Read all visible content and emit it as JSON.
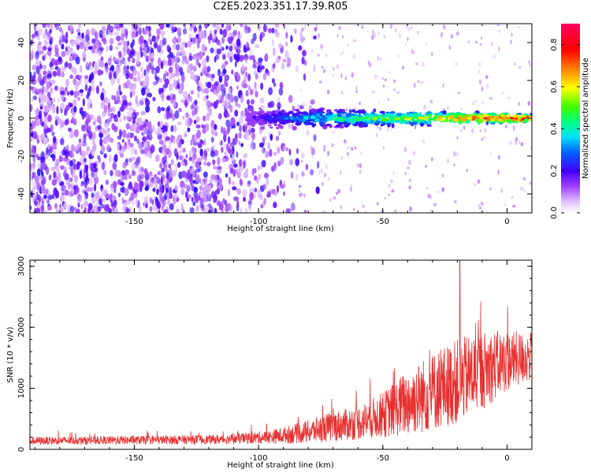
{
  "title": "C2E5.2023.351.17.39.R05",
  "chart_data": [
    {
      "type": "heatmap",
      "xlabel": "Height of straight line (km)",
      "ylabel": "Frequency (Hz)",
      "xlim": [
        -192,
        10
      ],
      "ylim": [
        -50,
        50
      ],
      "xticks": [
        -150,
        -100,
        -50,
        0
      ],
      "yticks": [
        -40,
        -20,
        0,
        20,
        40
      ],
      "grid": false,
      "colorbar": {
        "label": "Normalized spectral amplitude",
        "range": [
          0,
          0.9
        ],
        "ticks": [
          0.0,
          0.2,
          0.4,
          0.6,
          0.8
        ],
        "colors": [
          "#ffffff",
          "#e8c8ff",
          "#a040ff",
          "#6000e0",
          "#2000ff",
          "#0060ff",
          "#00e0ff",
          "#00ff80",
          "#40ff00",
          "#ffff00",
          "#ff8000",
          "#ff0000",
          "#ff0060"
        ]
      },
      "noise_region_x": [
        -192,
        -85
      ],
      "signal_ridge": {
        "x_range": [
          -105,
          10
        ],
        "frequency_hz": 0,
        "amplitude_profile": [
          {
            "x": -105,
            "amp": 0.15
          },
          {
            "x": -90,
            "amp": 0.3
          },
          {
            "x": -70,
            "amp": 0.45
          },
          {
            "x": -50,
            "amp": 0.55
          },
          {
            "x": -30,
            "amp": 0.65
          },
          {
            "x": -15,
            "amp": 0.8
          },
          {
            "x": 0,
            "amp": 0.85
          },
          {
            "x": 10,
            "amp": 0.8
          }
        ]
      }
    },
    {
      "type": "line",
      "xlabel": "Height of straight line (km)",
      "ylabel": "SNR (10 * v/v)",
      "xlim": [
        -192,
        10
      ],
      "ylim": [
        0,
        3100
      ],
      "xticks": [
        -150,
        -100,
        -50,
        0
      ],
      "yticks": [
        0,
        1000,
        2000,
        3000
      ],
      "grid": false,
      "color": "#e83030",
      "envelope": [
        {
          "x": -192,
          "base": 120,
          "spread": 130
        },
        {
          "x": -150,
          "base": 130,
          "spread": 140
        },
        {
          "x": -115,
          "base": 140,
          "spread": 150
        },
        {
          "x": -95,
          "base": 170,
          "spread": 220
        },
        {
          "x": -80,
          "base": 230,
          "spread": 380
        },
        {
          "x": -70,
          "base": 300,
          "spread": 500
        },
        {
          "x": -60,
          "base": 350,
          "spread": 550
        },
        {
          "x": -50,
          "base": 450,
          "spread": 750
        },
        {
          "x": -40,
          "base": 600,
          "spread": 1100
        },
        {
          "x": -30,
          "base": 750,
          "spread": 1300
        },
        {
          "x": -20,
          "base": 900,
          "spread": 1400
        },
        {
          "x": -10,
          "base": 1100,
          "spread": 1300
        },
        {
          "x": 0,
          "base": 1300,
          "spread": 1000
        },
        {
          "x": 10,
          "base": 1400,
          "spread": 800
        }
      ],
      "peak": {
        "x": -19,
        "y": 3100
      }
    }
  ]
}
